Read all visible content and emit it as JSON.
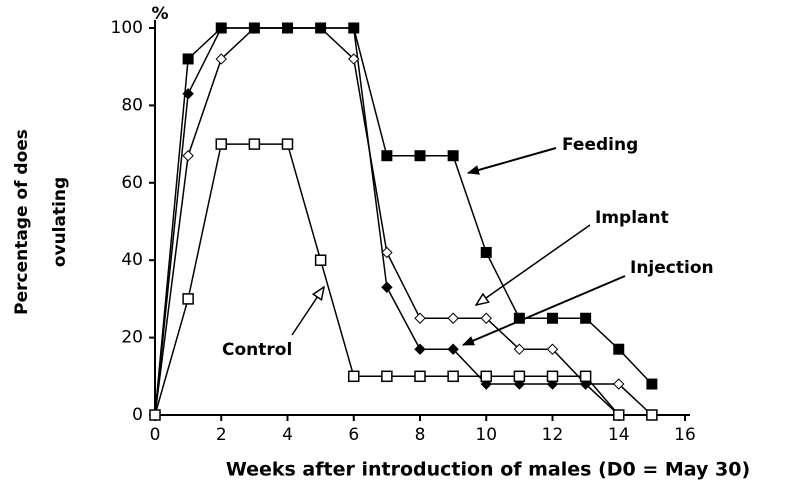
{
  "chart_data": {
    "type": "line",
    "x": [
      0,
      1,
      2,
      3,
      4,
      5,
      6,
      7,
      8,
      9,
      10,
      11,
      12,
      13,
      14,
      15
    ],
    "series": [
      {
        "name": "Feeding",
        "color": "#000000",
        "marker": "filled-square",
        "values": [
          0,
          92,
          100,
          100,
          100,
          100,
          100,
          67,
          67,
          67,
          42,
          25,
          25,
          25,
          17,
          8
        ]
      },
      {
        "name": "Implant",
        "color": "#000000",
        "marker": "open-diamond",
        "values": [
          0,
          67,
          92,
          100,
          100,
          100,
          92,
          42,
          25,
          25,
          25,
          17,
          17,
          8,
          8,
          0
        ]
      },
      {
        "name": "Injection",
        "color": "#000000",
        "marker": "filled-diamond",
        "values": [
          0,
          83,
          100,
          100,
          100,
          100,
          100,
          33,
          17,
          17,
          8,
          8,
          8,
          8,
          0,
          null
        ]
      },
      {
        "name": "Control",
        "color": "#000000",
        "marker": "open-square",
        "values": [
          0,
          30,
          70,
          70,
          70,
          40,
          10,
          10,
          10,
          10,
          10,
          10,
          10,
          10,
          0,
          0
        ]
      }
    ],
    "xlim": [
      0,
      16
    ],
    "xticks": [
      0,
      2,
      4,
      6,
      8,
      10,
      12,
      14,
      16
    ],
    "ylim": [
      0,
      100
    ],
    "yticks": [
      0,
      20,
      40,
      60,
      80,
      100
    ],
    "y_unit": "%",
    "ylabel": [
      "Percentage of does",
      "ovulating"
    ],
    "xlabel": "Weeks after introduction of males (D0 = May 30)"
  }
}
